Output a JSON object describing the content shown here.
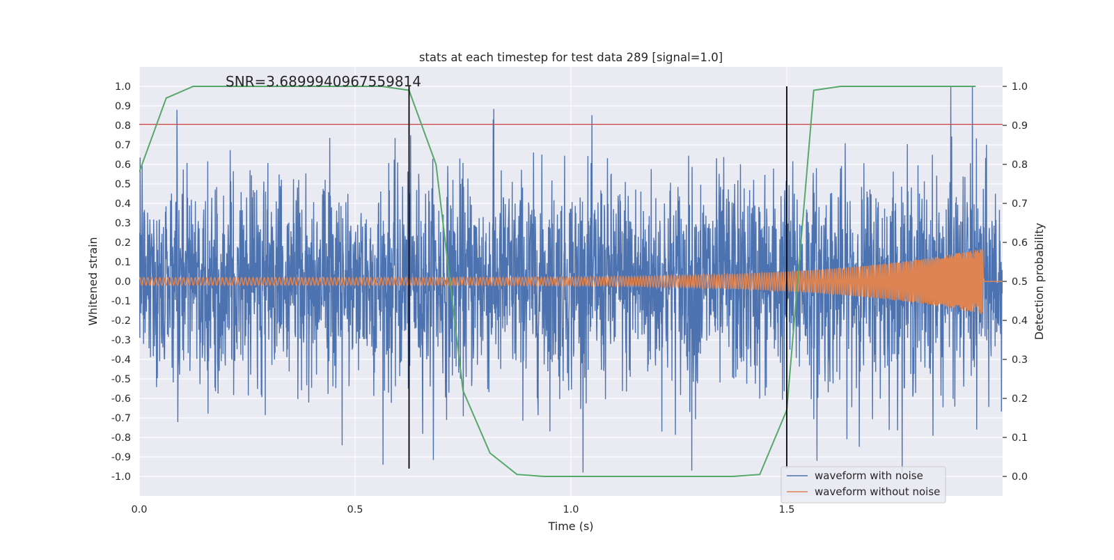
{
  "chart_data": {
    "type": "line",
    "title": "stats at each timestep for test data 289 [signal=1.0]",
    "annotation": "SNR=3.6899940967559814",
    "xlabel": "Time (s)",
    "ylabel_left": "Whitened strain",
    "ylabel_right": "Detection probability",
    "xlim": [
      0.0,
      2.0
    ],
    "ylim_left": [
      -1.1,
      1.1
    ],
    "ylim_right": [
      -0.05,
      1.05
    ],
    "x_ticks": [
      "0.0",
      "0.5",
      "1.0",
      "1.5"
    ],
    "x_tick_values": [
      0.0,
      0.5,
      1.0,
      1.5
    ],
    "y_left_ticks": [
      "1.0",
      "0.9",
      "0.8",
      "0.7",
      "0.6",
      "0.5",
      "0.4",
      "0.3",
      "0.2",
      "0.1",
      "0.0",
      "-0.1",
      "-0.2",
      "-0.3",
      "-0.4",
      "-0.5",
      "-0.6",
      "-0.7",
      "-0.8",
      "-0.9",
      "-1.0"
    ],
    "y_left_tick_values": [
      1.0,
      0.9,
      0.8,
      0.7,
      0.6,
      0.5,
      0.4,
      0.3,
      0.2,
      0.1,
      0.0,
      -0.1,
      -0.2,
      -0.3,
      -0.4,
      -0.5,
      -0.6,
      -0.7,
      -0.8,
      -0.9,
      -1.0
    ],
    "y_right_ticks": [
      "1.0",
      "0.9",
      "0.8",
      "0.7",
      "0.6",
      "0.5",
      "0.4",
      "0.3",
      "0.2",
      "0.1",
      "0.0"
    ],
    "y_right_tick_values": [
      1.0,
      0.9,
      0.8,
      0.7,
      0.6,
      0.5,
      0.4,
      0.3,
      0.2,
      0.1,
      0.0
    ],
    "grid": true,
    "legend_position": "bottom-right",
    "series": [
      {
        "name": "waveform with noise",
        "axis": "left",
        "color": "#4c72b0",
        "description_of_values": "random noise between about -1.0 and 1.0",
        "peaks": [
          [
            0.087,
            0.88
          ],
          [
            0.47,
            -0.84
          ],
          [
            0.82,
            0.83
          ],
          [
            1.28,
            -0.97
          ],
          [
            1.57,
            -0.92
          ],
          [
            1.88,
            1.0
          ],
          [
            1.93,
            1.0
          ],
          [
            1.94,
            -0.76
          ]
        ]
      },
      {
        "name": "waveform without noise",
        "axis": "left",
        "color": "#dd8452",
        "amplitude_start": 0.02,
        "amplitude_end": 0.17,
        "chirp_end_time": 1.955
      },
      {
        "name": "Detection probability",
        "axis": "right",
        "color": "#55a868",
        "x": [
          0.0,
          0.0625,
          0.125,
          0.1875,
          0.25,
          0.3125,
          0.375,
          0.4375,
          0.5,
          0.5625,
          0.625,
          0.6875,
          0.75,
          0.8125,
          0.875,
          0.9375,
          1.0,
          1.0625,
          1.125,
          1.1875,
          1.25,
          1.3125,
          1.375,
          1.4375,
          1.5,
          1.5625,
          1.625,
          1.6875,
          1.75,
          1.8125,
          1.875,
          1.9375
        ],
        "values": [
          0.78,
          0.97,
          1.0,
          1.0,
          1.0,
          1.0,
          1.0,
          1.0,
          1.0,
          1.0,
          0.99,
          0.8,
          0.22,
          0.06,
          0.005,
          0.0,
          0.0,
          0.0,
          0.0,
          0.0,
          0.0,
          0.0,
          0.0,
          0.005,
          0.17,
          0.99,
          1.0,
          1.0,
          1.0,
          1.0,
          1.0,
          1.0
        ]
      }
    ],
    "hlines": [
      {
        "axis": "left",
        "y": 0.805,
        "color": "#c44e52"
      }
    ],
    "vlines": [
      {
        "x": 0.625,
        "ymin": -0.96,
        "ymax": 1.0,
        "color": "#000000"
      },
      {
        "x": 1.5,
        "ymin": -0.96,
        "ymax": 1.0,
        "color": "#000000"
      }
    ],
    "colors": {
      "axes_bg": "#eaeaf2",
      "grid": "#ffffff"
    }
  }
}
